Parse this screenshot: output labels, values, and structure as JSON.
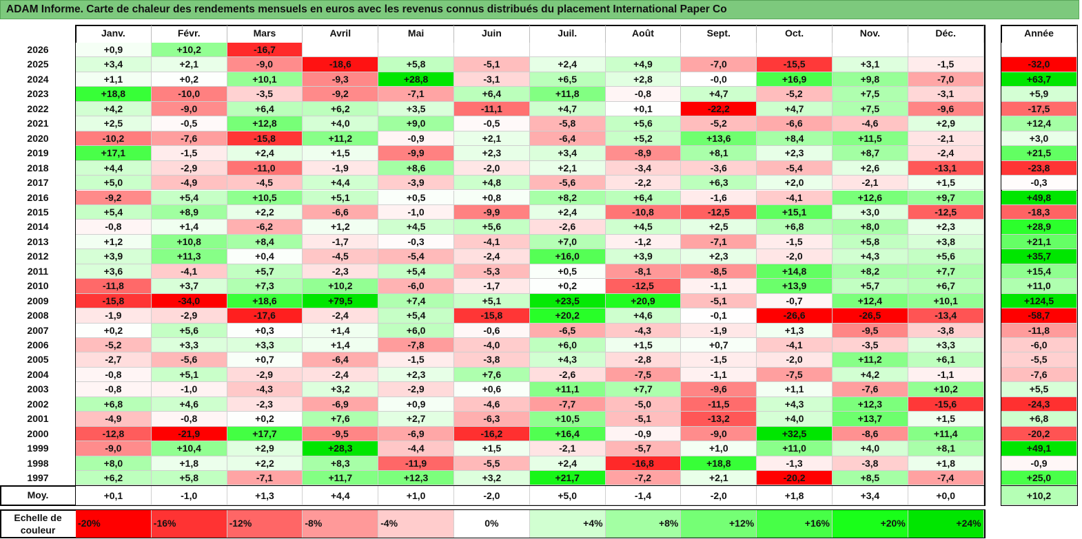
{
  "title": "ADAM Informe. Carte de chaleur des rendements mensuels en euros avec les revenus connus distribués du placement International Paper Co",
  "chart_data": {
    "type": "heatmap",
    "columns": [
      "Janv.",
      "Févr.",
      "Mars",
      "Avril",
      "Mai",
      "Juin",
      "Juil.",
      "Août",
      "Sept.",
      "Oct.",
      "Nov.",
      "Déc."
    ],
    "year_column_label": "Année",
    "rows": [
      {
        "year": "2026",
        "months": [
          "+0,9",
          "+10,2",
          "-16,7",
          "",
          "",
          "",
          "",
          "",
          "",
          "",
          "",
          ""
        ],
        "annual": ""
      },
      {
        "year": "2025",
        "months": [
          "+3,4",
          "+2,1",
          "-9,0",
          "-18,6",
          "+5,8",
          "-5,1",
          "+2,4",
          "+4,9",
          "-7,0",
          "-15,5",
          "+3,1",
          "-1,5"
        ],
        "annual": "-32,0"
      },
      {
        "year": "2024",
        "months": [
          "+1,1",
          "+0,2",
          "+10,1",
          "-9,3",
          "+28,8",
          "-3,1",
          "+6,5",
          "+2,8",
          "-0,0",
          "+16,9",
          "+9,8",
          "-7,0"
        ],
        "annual": "+63,7"
      },
      {
        "year": "2023",
        "months": [
          "+18,8",
          "-10,0",
          "-3,5",
          "-9,2",
          "-7,1",
          "+6,4",
          "+11,8",
          "-0,8",
          "+4,7",
          "-5,2",
          "+7,5",
          "-3,1"
        ],
        "annual": "+5,9"
      },
      {
        "year": "2022",
        "months": [
          "+4,2",
          "-9,0",
          "+6,4",
          "+6,2",
          "+3,5",
          "-11,1",
          "+4,7",
          "+0,1",
          "-22,2",
          "+4,7",
          "+7,5",
          "-9,6"
        ],
        "annual": "-17,5"
      },
      {
        "year": "2021",
        "months": [
          "+2,5",
          "-0,5",
          "+12,8",
          "+4,0",
          "+9,0",
          "-0,5",
          "-5,8",
          "+5,6",
          "-5,2",
          "-6,6",
          "-4,6",
          "+2,9"
        ],
        "annual": "+12,4"
      },
      {
        "year": "2020",
        "months": [
          "-10,2",
          "-7,6",
          "-15,8",
          "+11,2",
          "-0,9",
          "+2,1",
          "-6,4",
          "+5,2",
          "+13,6",
          "+8,4",
          "+11,5",
          "-2,1"
        ],
        "annual": "+3,0"
      },
      {
        "year": "2019",
        "months": [
          "+17,1",
          "-1,5",
          "+2,4",
          "+1,5",
          "-9,9",
          "+2,3",
          "+3,4",
          "-8,9",
          "+8,1",
          "+2,3",
          "+8,7",
          "-2,4"
        ],
        "annual": "+21,5"
      },
      {
        "year": "2018",
        "months": [
          "+4,4",
          "-2,9",
          "-11,0",
          "-1,9",
          "+8,6",
          "-2,0",
          "+2,1",
          "-3,4",
          "-3,6",
          "-5,4",
          "+2,6",
          "-13,1"
        ],
        "annual": "-23,8"
      },
      {
        "year": "2017",
        "months": [
          "+5,0",
          "-4,9",
          "-4,5",
          "+4,4",
          "-3,9",
          "+4,8",
          "-5,6",
          "-2,2",
          "+6,3",
          "+2,0",
          "-2,1",
          "+1,5"
        ],
        "annual": "-0,3"
      },
      {
        "year": "2016",
        "months": [
          "-9,2",
          "+5,4",
          "+10,5",
          "+5,1",
          "+0,5",
          "+0,8",
          "+8,2",
          "+6,4",
          "-1,6",
          "-4,1",
          "+12,6",
          "+9,7"
        ],
        "annual": "+49,8"
      },
      {
        "year": "2015",
        "months": [
          "+5,4",
          "+8,9",
          "+2,2",
          "-6,6",
          "-1,0",
          "-9,9",
          "+2,4",
          "-10,8",
          "-12,5",
          "+15,1",
          "+3,0",
          "-12,5"
        ],
        "annual": "-18,3"
      },
      {
        "year": "2014",
        "months": [
          "-0,8",
          "+1,4",
          "-6,2",
          "+1,2",
          "+4,5",
          "+5,6",
          "-2,6",
          "+4,5",
          "+2,5",
          "+6,8",
          "+8,0",
          "+2,3"
        ],
        "annual": "+28,9"
      },
      {
        "year": "2013",
        "months": [
          "+1,2",
          "+10,8",
          "+8,4",
          "-1,7",
          "-0,3",
          "-4,1",
          "+7,0",
          "-1,2",
          "-7,1",
          "-1,5",
          "+5,8",
          "+3,8"
        ],
        "annual": "+21,1"
      },
      {
        "year": "2012",
        "months": [
          "+3,9",
          "+11,3",
          "+0,4",
          "-4,5",
          "-5,4",
          "-2,4",
          "+16,0",
          "+3,9",
          "+2,3",
          "-2,0",
          "+4,3",
          "+5,6"
        ],
        "annual": "+35,7"
      },
      {
        "year": "2011",
        "months": [
          "+3,6",
          "-4,1",
          "+5,7",
          "-2,3",
          "+5,4",
          "-5,3",
          "+0,5",
          "-8,1",
          "-8,5",
          "+14,8",
          "+8,2",
          "+7,7"
        ],
        "annual": "+15,4"
      },
      {
        "year": "2010",
        "months": [
          "-11,8",
          "+3,7",
          "+7,3",
          "+10,2",
          "-6,0",
          "-1,7",
          "+0,2",
          "-12,5",
          "-1,1",
          "+13,9",
          "+5,7",
          "+6,7"
        ],
        "annual": "+11,0"
      },
      {
        "year": "2009",
        "months": [
          "-15,8",
          "-34,0",
          "+18,6",
          "+79,5",
          "+7,4",
          "+5,1",
          "+23,5",
          "+20,9",
          "-5,1",
          "-0,7",
          "+12,4",
          "+10,1"
        ],
        "annual": "+124,5"
      },
      {
        "year": "2008",
        "months": [
          "-1,9",
          "-2,9",
          "-17,6",
          "-2,4",
          "+5,4",
          "-15,8",
          "+20,2",
          "+4,6",
          "-0,1",
          "-26,6",
          "-26,5",
          "-13,4"
        ],
        "annual": "-58,7"
      },
      {
        "year": "2007",
        "months": [
          "+0,2",
          "+5,6",
          "+0,3",
          "+1,4",
          "+6,0",
          "-0,6",
          "-6,5",
          "-4,3",
          "-1,9",
          "+1,3",
          "-9,5",
          "-3,8"
        ],
        "annual": "-11,8"
      },
      {
        "year": "2006",
        "months": [
          "-5,2",
          "+3,3",
          "+3,3",
          "+1,4",
          "-7,8",
          "-4,0",
          "+6,0",
          "+1,5",
          "+0,7",
          "-4,1",
          "-3,5",
          "+3,3"
        ],
        "annual": "-6,0"
      },
      {
        "year": "2005",
        "months": [
          "-2,7",
          "-5,6",
          "+0,7",
          "-6,4",
          "-1,5",
          "-3,8",
          "+4,3",
          "-2,8",
          "-1,5",
          "-2,0",
          "+11,2",
          "+6,1"
        ],
        "annual": "-5,5"
      },
      {
        "year": "2004",
        "months": [
          "-0,8",
          "+5,1",
          "-2,9",
          "-2,4",
          "+2,3",
          "+7,6",
          "-2,6",
          "-7,5",
          "-1,1",
          "-7,5",
          "+4,2",
          "-1,1"
        ],
        "annual": "-7,6"
      },
      {
        "year": "2003",
        "months": [
          "-0,8",
          "-1,0",
          "-4,3",
          "+3,2",
          "-2,9",
          "+0,6",
          "+11,1",
          "+7,7",
          "-9,6",
          "+1,1",
          "-7,6",
          "+10,2"
        ],
        "annual": "+5,5"
      },
      {
        "year": "2002",
        "months": [
          "+6,8",
          "+4,6",
          "-2,3",
          "-6,9",
          "+0,9",
          "-4,6",
          "-7,7",
          "-5,0",
          "-11,5",
          "+4,3",
          "+12,3",
          "-15,6"
        ],
        "annual": "-24,3"
      },
      {
        "year": "2001",
        "months": [
          "-4,9",
          "-0,8",
          "+0,2",
          "+7,6",
          "+2,7",
          "-6,3",
          "+10,5",
          "-5,1",
          "-13,2",
          "+4,0",
          "+13,7",
          "+1,5"
        ],
        "annual": "+6,8"
      },
      {
        "year": "2000",
        "months": [
          "-12,8",
          "-21,9",
          "+17,7",
          "-9,5",
          "-6,9",
          "-16,2",
          "+16,4",
          "-0,9",
          "-9,0",
          "+32,5",
          "-8,6",
          "+11,4"
        ],
        "annual": "-20,2"
      },
      {
        "year": "1999",
        "months": [
          "-9,0",
          "+10,4",
          "+2,9",
          "+28,3",
          "-4,4",
          "+1,5",
          "-2,1",
          "-5,7",
          "+1,0",
          "+11,0",
          "+4,0",
          "+8,1"
        ],
        "annual": "+49,1"
      },
      {
        "year": "1998",
        "months": [
          "+8,0",
          "+1,8",
          "+2,2",
          "+8,3",
          "-11,9",
          "-5,5",
          "+2,4",
          "-16,8",
          "+18,8",
          "-1,3",
          "-3,8",
          "+1,8"
        ],
        "annual": "-0,9"
      },
      {
        "year": "1997",
        "months": [
          "+6,2",
          "+5,8",
          "-7,1",
          "+11,7",
          "+12,3",
          "+3,2",
          "+21,7",
          "-7,2",
          "+2,1",
          "-20,2",
          "+8,5",
          "-7,4"
        ],
        "annual": "+25,0"
      }
    ],
    "average": {
      "label": "Moy.",
      "months": [
        "+0,1",
        "-1,0",
        "+1,3",
        "+4,4",
        "+1,0",
        "-2,0",
        "+5,0",
        "-1,4",
        "-2,0",
        "+1,8",
        "+3,4",
        "+0,0"
      ],
      "annual": "+10,2"
    },
    "scale": {
      "label_line1": "Echelle de",
      "label_line2": "couleur",
      "steps": [
        {
          "label": "-20%",
          "value": -20,
          "color": "#ff0000"
        },
        {
          "label": "-16%",
          "value": -16,
          "color": "#ff3333"
        },
        {
          "label": "-12%",
          "value": -12,
          "color": "#ff6666"
        },
        {
          "label": "-8%",
          "value": -8,
          "color": "#ff9999"
        },
        {
          "label": "-4%",
          "value": -4,
          "color": "#ffcccc"
        },
        {
          "label": "0%",
          "value": 0,
          "color": "#ffffff"
        },
        {
          "label": "+4%",
          "value": 4,
          "color": "#d1ffd1"
        },
        {
          "label": "+8%",
          "value": 8,
          "color": "#a3ffa3"
        },
        {
          "label": "+12%",
          "value": 12,
          "color": "#75ff75"
        },
        {
          "label": "+16%",
          "value": 16,
          "color": "#47ff47"
        },
        {
          "label": "+20%",
          "value": 20,
          "color": "#19ff19"
        },
        {
          "label": "+24%",
          "value": 24,
          "color": "#00e600"
        }
      ]
    }
  }
}
